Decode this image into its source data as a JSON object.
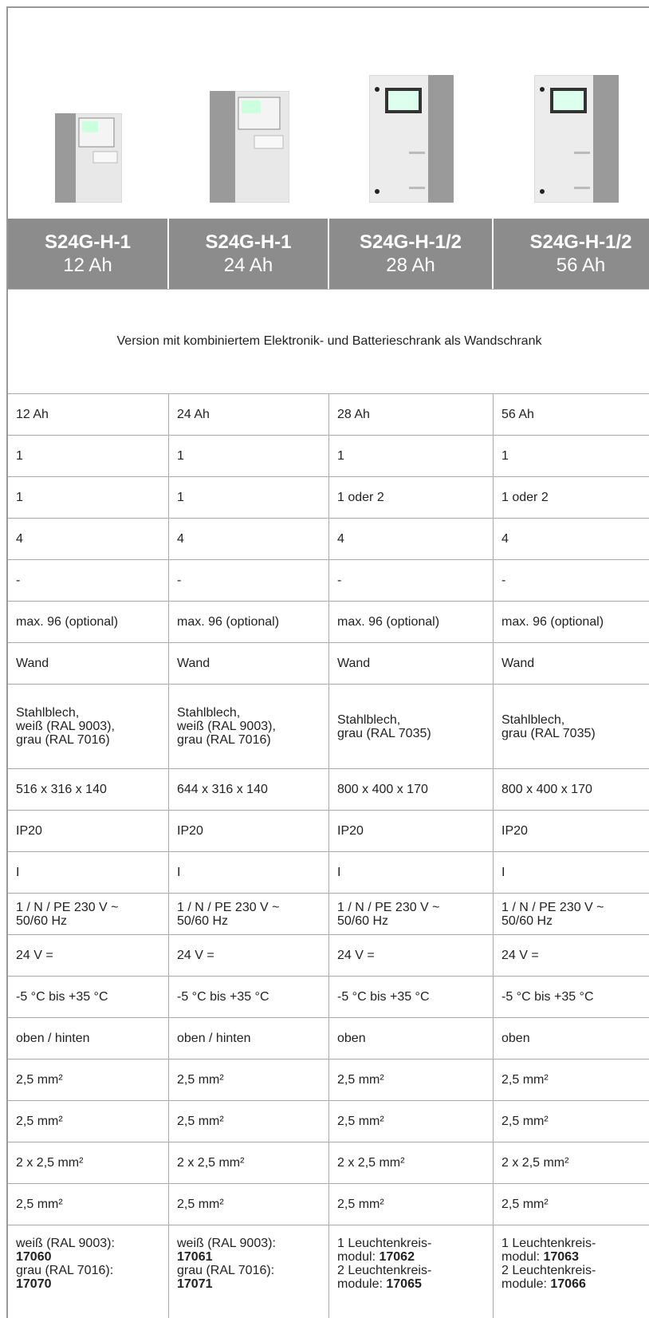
{
  "columns": [
    {
      "model": "S24G-H-1",
      "capacity": "12 Ah"
    },
    {
      "model": "S24G-H-1",
      "capacity": "24 Ah"
    },
    {
      "model": "S24G-H-1/2",
      "capacity": "28 Ah"
    },
    {
      "model": "S24G-H-1/2",
      "capacity": "56 Ah"
    }
  ],
  "description": "Version mit kombiniertem Elektronik- und Batterieschrank als Wandschrank",
  "rows": [
    [
      "12 Ah",
      "24 Ah",
      "28 Ah",
      "56 Ah"
    ],
    [
      "1",
      "1",
      "1",
      "1"
    ],
    [
      "1",
      "1",
      "1 oder 2",
      "1 oder 2"
    ],
    [
      "4",
      "4",
      "4",
      "4"
    ],
    [
      "-",
      "-",
      "-",
      "-"
    ],
    [
      "max. 96 (optional)",
      "max. 96 (optional)",
      "max. 96 (optional)",
      "max. 96 (optional)"
    ],
    [
      "Wand",
      "Wand",
      "Wand",
      "Wand"
    ],
    [
      "Stahlblech,\nweiß (RAL 9003),\ngrau (RAL 7016)",
      "Stahlblech,\nweiß (RAL 9003),\ngrau (RAL 7016)",
      "Stahlblech,\ngrau (RAL 7035)",
      "Stahlblech,\ngrau (RAL 7035)"
    ],
    [
      "516 x 316 x 140",
      "644 x 316 x 140",
      "800 x 400 x 170",
      "800 x 400 x 170"
    ],
    [
      "IP20",
      "IP20",
      "IP20",
      "IP20"
    ],
    [
      "I",
      "I",
      "I",
      "I"
    ],
    [
      "1 / N / PE 230 V ~\n50/60 Hz",
      "1 / N / PE 230 V ~\n50/60 Hz",
      "1 / N / PE 230 V ~\n50/60 Hz",
      "1 / N / PE 230 V ~\n50/60 Hz"
    ],
    [
      "24 V =",
      "24 V =",
      "24 V =",
      "24 V ="
    ],
    [
      "-5 °C bis +35 °C",
      "-5 °C bis +35 °C",
      "-5 °C bis +35 °C",
      "-5 °C bis +35 °C"
    ],
    [
      "oben / hinten",
      "oben / hinten",
      "oben",
      "oben"
    ],
    [
      "2,5 mm²",
      "2,5 mm²",
      "2,5 mm²",
      "2,5 mm²"
    ],
    [
      "2,5 mm²",
      "2,5 mm²",
      "2,5 mm²",
      "2,5 mm²"
    ],
    [
      "2 x 2,5 mm²",
      "2 x 2,5 mm²",
      "2 x 2,5 mm²",
      "2 x 2,5 mm²"
    ],
    [
      "2,5 mm²",
      "2,5 mm²",
      "2,5 mm²",
      "2,5 mm²"
    ]
  ],
  "order_numbers": [
    [
      {
        "label": "weiß (RAL 9003):\n",
        "code": "17060"
      },
      {
        "label": "grau (RAL 7016):\n",
        "code": "17070"
      }
    ],
    [
      {
        "label": "weiß (RAL 9003):\n",
        "code": "17061"
      },
      {
        "label": "grau (RAL 7016):\n",
        "code": "17071"
      }
    ],
    [
      {
        "label": "1 Leuchtenkreis-\nmodul: ",
        "code": "17062"
      },
      {
        "label": "2 Leuchtenkreis-\nmodule: ",
        "code": "17065"
      }
    ],
    [
      {
        "label": "1 Leuchtenkreis-\nmodul: ",
        "code": "17063"
      },
      {
        "label": "2 Leuchtenkreis-\nmodule: ",
        "code": "17066"
      }
    ]
  ]
}
